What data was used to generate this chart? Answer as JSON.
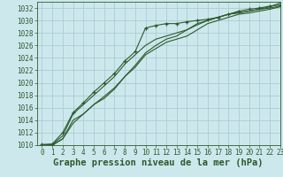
{
  "title": "Graphe pression niveau de la mer (hPa)",
  "background_color": "#cde8ec",
  "grid_color": "#a8cdd4",
  "line_color": "#2d5a2d",
  "xlim": [
    -0.5,
    23
  ],
  "ylim": [
    1010,
    1033
  ],
  "xticks": [
    0,
    1,
    2,
    3,
    4,
    5,
    6,
    7,
    8,
    9,
    10,
    11,
    12,
    13,
    14,
    15,
    16,
    17,
    18,
    19,
    20,
    21,
    22,
    23
  ],
  "yticks": [
    1010,
    1012,
    1014,
    1016,
    1018,
    1020,
    1022,
    1024,
    1026,
    1028,
    1030,
    1032
  ],
  "lines": [
    {
      "x": [
        0,
        1,
        2,
        3,
        4,
        5,
        6,
        7,
        8,
        9,
        10,
        11,
        12,
        13,
        14,
        15,
        16,
        17,
        18,
        19,
        20,
        21,
        22,
        23
      ],
      "y": [
        1010.1,
        1010.2,
        1012.0,
        1015.2,
        1016.8,
        1018.5,
        1020.0,
        1021.5,
        1023.5,
        1025.0,
        1028.8,
        1029.2,
        1029.5,
        1029.5,
        1029.8,
        1030.0,
        1030.2,
        1030.5,
        1031.0,
        1031.5,
        1031.8,
        1032.0,
        1032.3,
        1032.5
      ],
      "marker": "+"
    },
    {
      "x": [
        0,
        1,
        2,
        3,
        4,
        5,
        6,
        7,
        8,
        9,
        10,
        11,
        12,
        13,
        14,
        15,
        16,
        17,
        18,
        19,
        20,
        21,
        22,
        23
      ],
      "y": [
        1010.0,
        1010.1,
        1011.5,
        1015.0,
        1016.5,
        1018.0,
        1019.5,
        1021.0,
        1023.0,
        1024.5,
        1026.0,
        1027.0,
        1027.5,
        1028.0,
        1028.5,
        1029.3,
        1030.0,
        1030.5,
        1031.0,
        1031.3,
        1031.5,
        1031.8,
        1032.0,
        1032.3
      ],
      "marker": null
    },
    {
      "x": [
        0,
        1,
        2,
        3,
        4,
        5,
        6,
        7,
        8,
        9,
        10,
        11,
        12,
        13,
        14,
        15,
        16,
        17,
        18,
        19,
        20,
        21,
        22,
        23
      ],
      "y": [
        1010.0,
        1010.0,
        1011.0,
        1014.0,
        1015.0,
        1016.5,
        1017.5,
        1019.0,
        1021.0,
        1022.5,
        1024.5,
        1025.5,
        1026.5,
        1027.0,
        1027.5,
        1028.5,
        1029.5,
        1030.0,
        1030.5,
        1031.0,
        1031.2,
        1031.5,
        1031.8,
        1032.2
      ],
      "marker": null
    },
    {
      "x": [
        0,
        1,
        2,
        3,
        4,
        5,
        6,
        7,
        8,
        9,
        10,
        11,
        12,
        13,
        14,
        15,
        16,
        17,
        18,
        19,
        20,
        21,
        22,
        23
      ],
      "y": [
        1010.0,
        1010.0,
        1011.0,
        1013.5,
        1015.0,
        1016.5,
        1017.8,
        1019.2,
        1021.0,
        1022.8,
        1024.8,
        1026.0,
        1027.0,
        1027.5,
        1028.5,
        1029.5,
        1030.0,
        1030.5,
        1031.0,
        1031.2,
        1031.5,
        1031.8,
        1032.2,
        1032.8
      ],
      "marker": null
    }
  ],
  "title_fontsize": 7.5,
  "tick_fontsize": 5.5
}
